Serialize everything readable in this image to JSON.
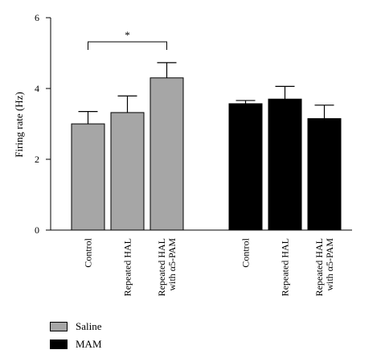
{
  "chart_data": {
    "type": "bar",
    "ylabel": "Firing rate (Hz)",
    "ylim": [
      0,
      6
    ],
    "yticks": [
      0,
      2,
      4,
      6
    ],
    "groups": [
      {
        "series": "Saline",
        "color": "#a6a6a6",
        "bars": [
          {
            "category": [
              "Control"
            ],
            "value": 3.0,
            "error": 0.35
          },
          {
            "category": [
              "Repeated HAL"
            ],
            "value": 3.32,
            "error": 0.47
          },
          {
            "category": [
              "Repeated HAL",
              "with α5-PAM"
            ],
            "value": 4.3,
            "error": 0.43
          }
        ]
      },
      {
        "series": "MAM",
        "color": "#000000",
        "bars": [
          {
            "category": [
              "Control"
            ],
            "value": 3.57,
            "error": 0.09
          },
          {
            "category": [
              "Repeated HAL"
            ],
            "value": 3.7,
            "error": 0.36
          },
          {
            "category": [
              "Repeated HAL",
              "with α5-PAM"
            ],
            "value": 3.15,
            "error": 0.38
          }
        ]
      }
    ],
    "significance": [
      {
        "from": 0,
        "to": 2,
        "label": "*"
      }
    ],
    "legend": [
      {
        "name": "Saline",
        "color": "#a6a6a6"
      },
      {
        "name": "MAM",
        "color": "#000000"
      }
    ]
  }
}
